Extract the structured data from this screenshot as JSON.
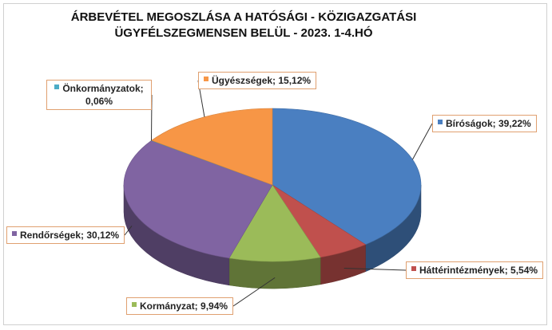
{
  "chart_data": {
    "type": "pie",
    "title": "ÁRBEVÉTEL MEGOSZLÁSA A HATÓSÁGI - KÖZIGAZGATÁSI ÜGYFÉLSZEGMENSEN BELÜL - 2023.  1-4.HÓ",
    "title_lines": [
      "ÁRBEVÉTEL MEGOSZLÁSA A HATÓSÁGI - KÖZIGAZGATÁSI",
      "ÜGYFÉLSZEGMENSEN BELÜL - 2023.  1-4.HÓ"
    ],
    "slices": [
      {
        "name": "Bíróságok",
        "value": 39.22,
        "label": "Bíróságok; 39,22%",
        "color": "#4a7fc1"
      },
      {
        "name": "Háttérintézmények",
        "value": 5.54,
        "label": "Háttérintézmények; 5,54%",
        "color": "#c0504d"
      },
      {
        "name": "Kormányzat",
        "value": 9.94,
        "label": "Kormányzat; 9,94%",
        "color": "#9bbb59"
      },
      {
        "name": "Rendőrségek",
        "value": 30.12,
        "label": "Rendőrségek; 30,12%",
        "color": "#8064a2"
      },
      {
        "name": "Önkormányzatok",
        "value": 0.06,
        "label_lines": [
          "Önkormányzatok;",
          "0,06%"
        ],
        "color": "#4bacc6"
      },
      {
        "name": "Ügyészségek",
        "value": 15.12,
        "label": "Ügyészségek; 15,12%",
        "color": "#f79646"
      }
    ],
    "legend": "none",
    "data_labels": "callouts"
  }
}
